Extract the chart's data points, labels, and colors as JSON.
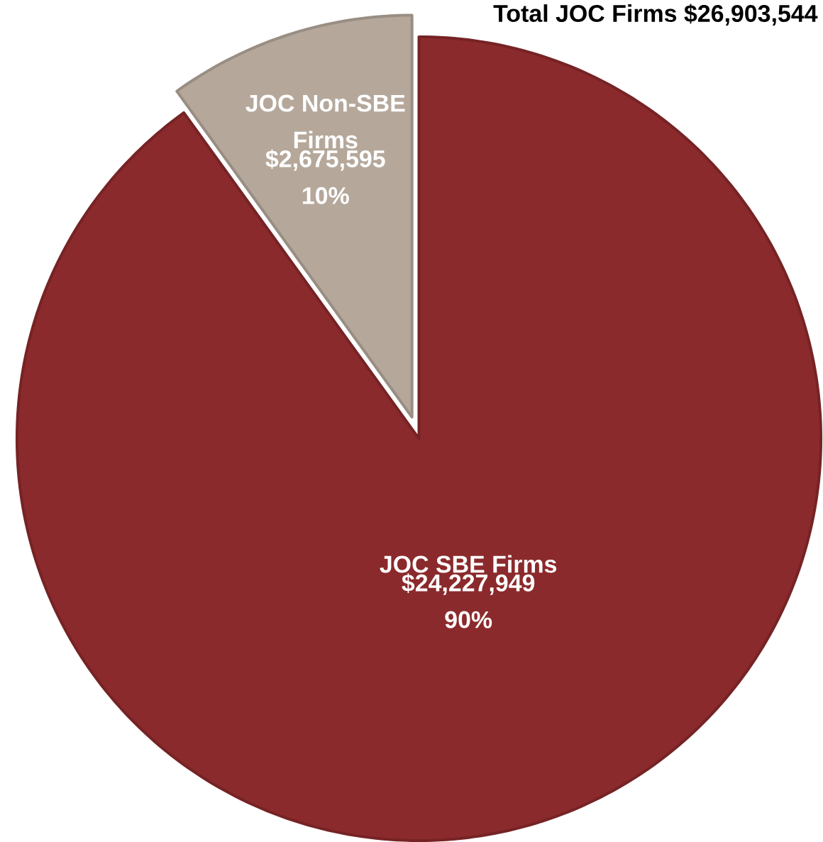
{
  "chart_data": {
    "type": "pie",
    "title": "Total JOC Firms $26,903,544",
    "categories": [
      "JOC SBE Firms",
      "JOC Non-SBE Firms"
    ],
    "values": [
      24227949,
      2675595
    ],
    "colors": [
      "#8b2a2c",
      "#b5a89b"
    ],
    "value_labels": [
      "$24,227,949 90%",
      "$2,675,595 10%"
    ]
  }
}
